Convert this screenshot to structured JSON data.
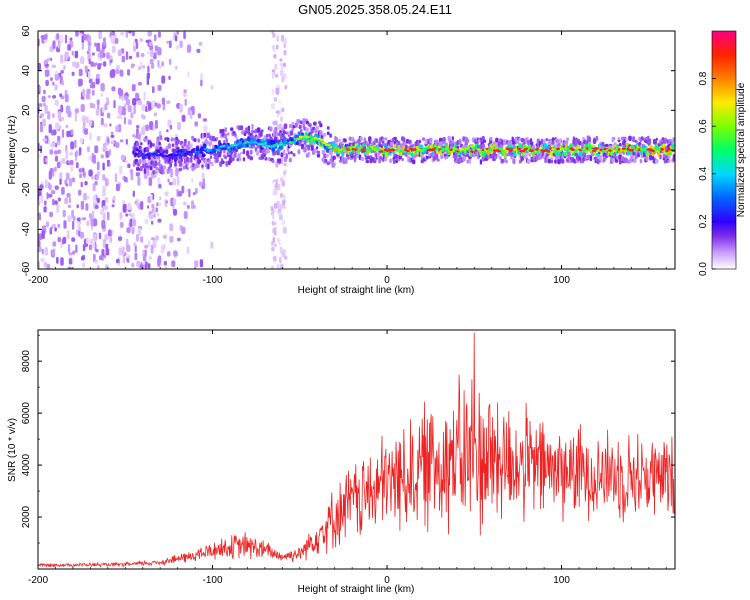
{
  "title": "GN05.2025.358.05.24.E11",
  "colors": {
    "snr_line": "#ee2222",
    "axis": "#000000",
    "colormap": [
      "#ffffff",
      "#c99bff",
      "#7a2ce6",
      "#2f00ff",
      "#0066ff",
      "#00d9ff",
      "#00ff66",
      "#7dff00",
      "#ffea00",
      "#ff8000",
      "#ff2200",
      "#ff0080"
    ]
  },
  "chart_data": [
    {
      "type": "heatmap",
      "title": "GN05.2025.358.05.24.E11",
      "xlabel": "Height of straight line (km)",
      "ylabel": "Frequency (Hz)",
      "xlim": [
        -200,
        165
      ],
      "ylim": [
        -60,
        60
      ],
      "xticks": [
        -200,
        -100,
        0,
        100
      ],
      "xtick_labels": [
        "-200",
        "-100",
        "0",
        "100"
      ],
      "yticks": [
        -60,
        -40,
        -20,
        0,
        20,
        40,
        60
      ],
      "ytick_labels": [
        "-60",
        "-40",
        "-20",
        "0",
        "20",
        "40",
        "60"
      ],
      "colorbar": {
        "label": "Normalized spectral amplitude",
        "range": [
          0,
          1
        ],
        "ticks": [
          0,
          0.2,
          0.4,
          0.6,
          0.8
        ],
        "tick_labels": [
          "0.0",
          "0.2",
          "0.4",
          "0.6",
          "0.8"
        ]
      },
      "ridge": {
        "x": [
          -140,
          -125,
          -110,
          -95,
          -85,
          -75,
          -65,
          -55,
          -50,
          -45,
          -40,
          -35,
          -30,
          -20,
          0,
          50,
          100,
          165
        ],
        "freq": [
          -2,
          -3,
          -1,
          1,
          3,
          4,
          2,
          4,
          6,
          6,
          6,
          3,
          0,
          0,
          0,
          0,
          0,
          0
        ],
        "peak_amplitude": [
          0.35,
          0.3,
          0.4,
          0.45,
          0.5,
          0.55,
          0.5,
          0.55,
          0.65,
          0.75,
          0.75,
          0.7,
          0.8,
          0.9,
          0.92,
          0.92,
          0.92,
          0.92
        ]
      },
      "noise_region_x": [
        -200,
        -110
      ]
    },
    {
      "type": "line",
      "xlabel": "Height of straight line (km)",
      "ylabel": "SNR (10 * v/v)",
      "xlim": [
        -200,
        165
      ],
      "ylim": [
        0,
        9200
      ],
      "xticks": [
        -200,
        -100,
        0,
        100
      ],
      "xtick_labels": [
        "-200",
        "-100",
        "0",
        "100"
      ],
      "yticks": [
        2000,
        4000,
        6000,
        8000
      ],
      "ytick_labels": [
        "2000",
        "4000",
        "6000",
        "8000"
      ],
      "envelope": {
        "x": [
          -200,
          -150,
          -130,
          -110,
          -95,
          -80,
          -70,
          -60,
          -50,
          -40,
          -30,
          -20,
          -10,
          0,
          10,
          20,
          30,
          40,
          50,
          60,
          70,
          80,
          100,
          120,
          140,
          165
        ],
        "mean": [
          150,
          170,
          260,
          520,
          800,
          900,
          720,
          480,
          600,
          1300,
          2000,
          2600,
          2900,
          3300,
          3600,
          3900,
          4200,
          4300,
          4400,
          4300,
          4100,
          4000,
          3800,
          3700,
          3600,
          3500
        ],
        "spread": [
          80,
          90,
          140,
          300,
          500,
          650,
          450,
          250,
          350,
          900,
          1400,
          1800,
          2000,
          2300,
          2500,
          2800,
          3200,
          3400,
          3900,
          3400,
          2800,
          2500,
          2200,
          2000,
          2000,
          1900
        ]
      },
      "peak": {
        "x": 50,
        "y": 9100
      }
    }
  ]
}
